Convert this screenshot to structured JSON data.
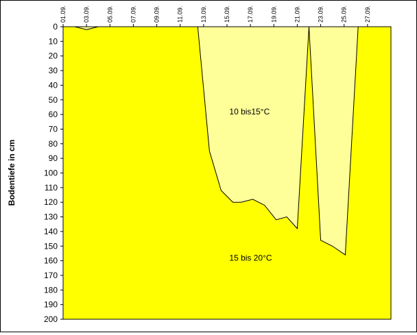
{
  "chart_data": {
    "type": "area",
    "title": "",
    "xlabel": "",
    "ylabel": "Bodentiefe in cm",
    "x_ticks": [
      "01.09.",
      "03.09.",
      "05.09.",
      "07.09.",
      "09.09.",
      "11.09.",
      "13.09.",
      "15.09.",
      "17.09.",
      "19.09.",
      "21.09.",
      "23.09.",
      "25.09.",
      "27.09."
    ],
    "x_range_days": [
      1,
      29
    ],
    "ylim": [
      0,
      200
    ],
    "y_ticks": [
      0,
      10,
      20,
      30,
      40,
      50,
      60,
      70,
      80,
      90,
      100,
      110,
      120,
      130,
      140,
      150,
      160,
      170,
      180,
      190,
      200
    ],
    "y_inverted": true,
    "zones": [
      {
        "label": "10 bis15°C",
        "color": "#ffff99"
      },
      {
        "label": "15 bis 20°C",
        "color": "#ffff00"
      }
    ],
    "boundary_series": [
      {
        "name": "",
        "x": [
          2,
          3,
          4
        ],
        "y": [
          0,
          2,
          0
        ]
      },
      {
        "name": "",
        "x": [
          12.5,
          13.5,
          14.5,
          15.5,
          16.2,
          17.2,
          18.2,
          19.2,
          20.1,
          21,
          22,
          23,
          24,
          25.1,
          26.2
        ],
        "y": [
          0,
          85,
          112,
          120,
          120,
          118,
          122,
          132,
          130,
          138,
          0,
          146,
          150,
          156,
          0
        ]
      }
    ],
    "zone_label_positions": [
      {
        "label": "10 bis15°C",
        "x": 15.2,
        "y": 58
      },
      {
        "label": "15 bis 20°C",
        "x": 15.2,
        "y": 158
      }
    ],
    "grid": false,
    "legend": "none"
  }
}
